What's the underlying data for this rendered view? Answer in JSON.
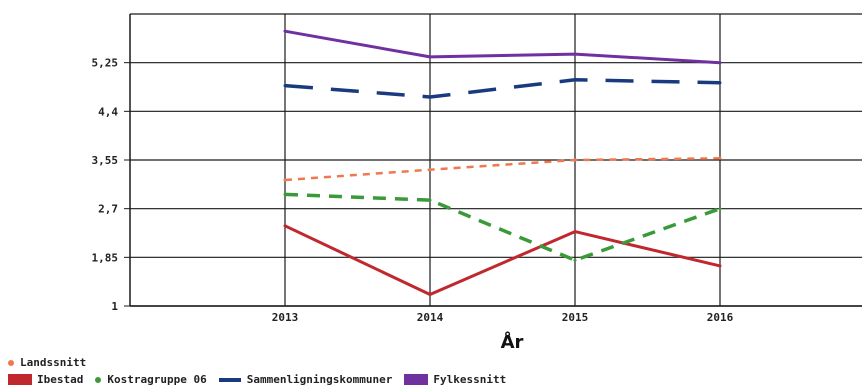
{
  "chart_data": {
    "type": "line",
    "xlabel": "År",
    "ylabel": "",
    "categories": [
      "2013",
      "2014",
      "2015",
      "2016"
    ],
    "ylim": [
      1,
      6.1
    ],
    "yticks": [
      "1",
      "1,85",
      "2,7",
      "3,55",
      "4,4",
      "5,25"
    ],
    "ytick_values": [
      1,
      1.85,
      2.7,
      3.55,
      4.4,
      5.25
    ],
    "grid": true,
    "legend_position": "bottom-left",
    "series": [
      {
        "name": "Landssnitt",
        "values": [
          3.2,
          3.38,
          3.55,
          3.58
        ],
        "color": "#f07850",
        "style": "dotted"
      },
      {
        "name": "Ibestad",
        "values": [
          2.4,
          1.2,
          2.3,
          1.7
        ],
        "color": "#c0282d",
        "style": "solid"
      },
      {
        "name": "Kostragruppe 06",
        "values": [
          2.95,
          2.85,
          1.8,
          2.7
        ],
        "color": "#3a9a3a",
        "style": "dashed"
      },
      {
        "name": "Sammenligningskommuner",
        "values": [
          4.85,
          4.65,
          4.95,
          4.9
        ],
        "color": "#1a3a80",
        "style": "longdash"
      },
      {
        "name": "Fylkessnitt",
        "values": [
          5.8,
          5.35,
          5.4,
          5.25
        ],
        "color": "#7030a0",
        "style": "solid"
      }
    ]
  }
}
